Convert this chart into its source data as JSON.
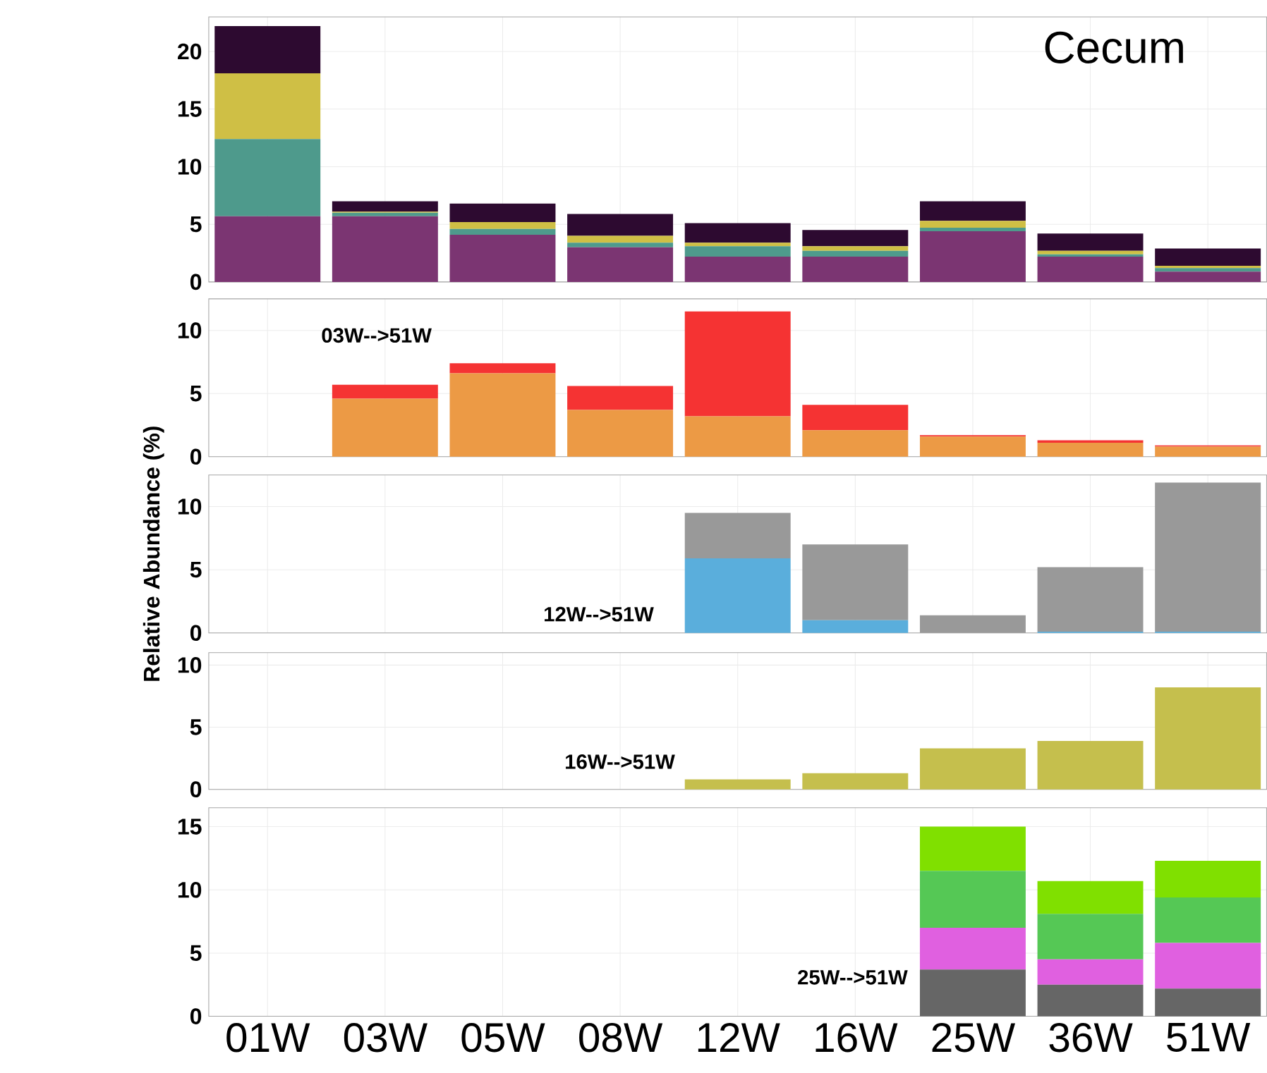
{
  "chart_data": [
    {
      "type": "bar",
      "stacked": true,
      "title": "Cecum",
      "categories": [
        null,
        null,
        null,
        null,
        null,
        null,
        null,
        null,
        null
      ],
      "ylim": [
        0,
        23
      ],
      "yticks": [
        0,
        5,
        10,
        15,
        20
      ],
      "grid": true,
      "tick_labels": "y",
      "series": [
        {
          "color": "#7b3572",
          "values": [
            5.7,
            5.7,
            4.1,
            3.0,
            2.2,
            2.2,
            4.4,
            2.2,
            0.9
          ]
        },
        {
          "color": "#4e9a8c",
          "values": [
            6.7,
            0.3,
            0.5,
            0.4,
            0.9,
            0.5,
            0.3,
            0.2,
            0.3
          ]
        },
        {
          "color": "#cfbf45",
          "values": [
            5.7,
            0.1,
            0.6,
            0.6,
            0.3,
            0.4,
            0.6,
            0.3,
            0.2
          ]
        },
        {
          "color": "#2d0a30",
          "values": [
            4.1,
            0.9,
            1.6,
            1.9,
            1.7,
            1.4,
            1.7,
            1.5,
            1.5
          ]
        }
      ]
    },
    {
      "type": "bar",
      "stacked": true,
      "categories": [
        null,
        null,
        null,
        null,
        null,
        null,
        null,
        null,
        null
      ],
      "ylim": [
        0,
        12.5
      ],
      "yticks": [
        0,
        5,
        10
      ],
      "grid": true,
      "tick_labels": "y",
      "annotations": [
        "03W-->51W"
      ],
      "series": [
        {
          "color": "#ec9a45",
          "values": [
            null,
            4.6,
            6.6,
            3.7,
            3.2,
            2.1,
            1.6,
            1.1,
            0.8
          ]
        },
        {
          "color": "#f53333",
          "values": [
            null,
            1.1,
            0.8,
            1.9,
            8.3,
            2.0,
            0.1,
            0.2,
            0.1
          ]
        }
      ]
    },
    {
      "type": "bar",
      "stacked": true,
      "categories": [
        null,
        null,
        null,
        null,
        null,
        null,
        null,
        null,
        null
      ],
      "ylim": [
        0,
        12.5
      ],
      "yticks": [
        0,
        5,
        10
      ],
      "grid": true,
      "tick_labels": "y",
      "ylabel": "Relative Abundance (%)",
      "annotations": [
        "12W-->51W"
      ],
      "series": [
        {
          "color": "#5aaedc",
          "values": [
            null,
            null,
            null,
            null,
            5.9,
            1.0,
            null,
            0.1,
            0.1
          ]
        },
        {
          "color": "#999999",
          "values": [
            null,
            null,
            null,
            null,
            3.6,
            6.0,
            1.4,
            5.1,
            11.8
          ]
        }
      ]
    },
    {
      "type": "bar",
      "stacked": true,
      "categories": [
        null,
        null,
        null,
        null,
        null,
        null,
        null,
        null,
        null
      ],
      "ylim": [
        0,
        11
      ],
      "yticks": [
        0,
        5,
        10
      ],
      "grid": true,
      "tick_labels": "y",
      "annotations": [
        "16W-->51W"
      ],
      "series": [
        {
          "color": "#c5bf4d",
          "values": [
            null,
            null,
            null,
            null,
            0.8,
            1.3,
            3.3,
            3.9,
            8.2
          ]
        }
      ]
    },
    {
      "type": "bar",
      "stacked": true,
      "categories": [
        "01W",
        "03W",
        "05W",
        "08W",
        "12W",
        "16W",
        "25W",
        "36W",
        "51W"
      ],
      "ylim": [
        0,
        16.5
      ],
      "yticks": [
        0,
        5,
        10,
        15
      ],
      "grid": true,
      "annotations": [
        "25W-->51W"
      ],
      "series": [
        {
          "color": "#666666",
          "values": [
            null,
            null,
            null,
            null,
            null,
            null,
            3.7,
            2.5,
            2.2
          ]
        },
        {
          "color": "#e060e0",
          "values": [
            null,
            null,
            null,
            null,
            null,
            null,
            3.3,
            2.0,
            3.6
          ]
        },
        {
          "color": "#55c855",
          "values": [
            null,
            null,
            null,
            null,
            null,
            null,
            4.5,
            3.6,
            3.6
          ]
        },
        {
          "color": "#80e000",
          "values": [
            null,
            null,
            null,
            null,
            null,
            null,
            3.5,
            2.6,
            2.9
          ]
        }
      ]
    }
  ]
}
